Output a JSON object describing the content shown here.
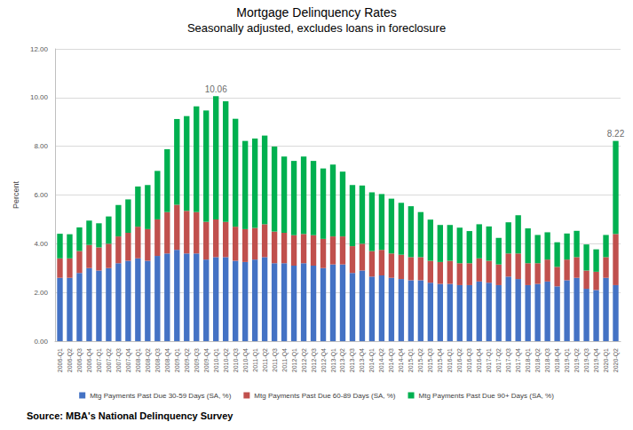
{
  "chart_data": {
    "type": "bar",
    "title": "Mortgage Delinquency Rates",
    "subtitle": "Seasonally adjusted, excludes loans in foreclosure",
    "y_label": "Percent",
    "source": "Source: MBA's National Delinquency Survey",
    "stacked": true,
    "grid": true,
    "legend": "bottom",
    "categories": [
      "2006-Q1",
      "2006-Q2",
      "2006-Q3",
      "2006-Q4",
      "2007-Q1",
      "2007-Q2",
      "2007-Q3",
      "2007-Q4",
      "2008-Q1",
      "2008-Q2",
      "2008-Q3",
      "2008-Q4",
      "2009-Q1",
      "2009-Q2",
      "2009-Q3",
      "2009-Q4",
      "2010-Q1",
      "2010-Q2",
      "2010-Q3",
      "2010-Q4",
      "2011-Q1",
      "2011-Q2",
      "2011-Q3",
      "2011-Q4",
      "2012-Q1",
      "2012-Q2",
      "2012-Q3",
      "2012-Q4",
      "2013-Q1",
      "2013-Q2",
      "2013-Q3",
      "2013-Q4",
      "2014-Q1",
      "2014-Q2",
      "2014-Q3",
      "2014-Q4",
      "2015-Q1",
      "2015-Q2",
      "2015-Q3",
      "2015-Q4",
      "2016-Q1",
      "2016-Q2",
      "2016-Q3",
      "2016-Q4",
      "2017-Q1",
      "2017-Q2",
      "2017-Q3",
      "2017-Q4",
      "2018-Q1",
      "2018-Q2",
      "2018-Q3",
      "2018-Q4",
      "2019-Q1",
      "2019-Q2",
      "2019-Q3",
      "2019-Q4",
      "2020-Q1",
      "2020-Q2"
    ],
    "series": [
      {
        "name": "Mtg Payments Past Due 30-59 Days (SA, %)",
        "color": "#4472c4",
        "values": [
          2.6,
          2.6,
          2.8,
          3.0,
          2.9,
          3.0,
          3.2,
          3.3,
          3.4,
          3.3,
          3.5,
          3.6,
          3.75,
          3.6,
          3.6,
          3.35,
          3.45,
          3.45,
          3.3,
          3.25,
          3.35,
          3.45,
          3.2,
          3.2,
          3.1,
          3.2,
          3.1,
          3.0,
          3.15,
          3.15,
          2.8,
          2.9,
          2.65,
          2.7,
          2.6,
          2.55,
          2.5,
          2.5,
          2.4,
          2.35,
          2.35,
          2.3,
          2.3,
          2.45,
          2.4,
          2.3,
          2.65,
          2.55,
          2.3,
          2.35,
          2.45,
          2.25,
          2.5,
          2.6,
          2.15,
          2.1,
          2.6,
          2.3
        ]
      },
      {
        "name": "Mtg Payments Past Due 60-89 Days (SA, %)",
        "color": "#c0504d",
        "values": [
          0.8,
          0.8,
          0.9,
          0.95,
          0.95,
          1.0,
          1.1,
          1.15,
          1.3,
          1.3,
          1.5,
          1.7,
          1.85,
          1.75,
          1.7,
          1.55,
          1.55,
          1.45,
          1.4,
          1.35,
          1.3,
          1.35,
          1.3,
          1.25,
          1.25,
          1.2,
          1.25,
          1.2,
          1.15,
          1.15,
          1.1,
          1.1,
          1.05,
          1.05,
          1.0,
          1.0,
          0.95,
          0.95,
          0.9,
          0.9,
          0.95,
          0.9,
          0.9,
          0.95,
          0.9,
          0.85,
          0.95,
          1.05,
          0.9,
          0.85,
          0.9,
          0.8,
          0.85,
          0.85,
          0.75,
          0.75,
          0.85,
          2.1
        ]
      },
      {
        "name": "Mtg Payments Past Due 90+ Days (SA, %)",
        "color": "#00b050",
        "values": [
          1.01,
          0.99,
          0.97,
          1.0,
          0.99,
          1.12,
          1.29,
          1.37,
          1.65,
          1.81,
          1.99,
          2.58,
          3.52,
          3.89,
          4.34,
          4.57,
          5.06,
          4.95,
          4.43,
          3.62,
          3.67,
          3.64,
          3.49,
          3.13,
          3.05,
          3.18,
          3.05,
          2.89,
          2.95,
          2.66,
          2.51,
          2.39,
          2.41,
          2.29,
          2.25,
          2.13,
          2.09,
          1.85,
          1.69,
          1.52,
          1.47,
          1.46,
          1.32,
          1.4,
          1.41,
          1.09,
          1.28,
          1.57,
          1.43,
          1.16,
          1.12,
          1.01,
          1.07,
          1.08,
          1.07,
          0.92,
          0.91,
          3.82
        ]
      }
    ],
    "annotations": [
      {
        "category": "2010-Q1",
        "value": 10.06
      },
      {
        "category": "2020-Q2",
        "value": 8.22
      }
    ],
    "ylim": [
      0,
      12
    ],
    "yticks": [
      {
        "value": 0,
        "label": "0.00"
      },
      {
        "value": 2,
        "label": "2.00"
      },
      {
        "value": 4,
        "label": "4.00"
      },
      {
        "value": 6,
        "label": "6.00"
      },
      {
        "value": 8,
        "label": "8.00"
      },
      {
        "value": 10,
        "label": "10.00"
      },
      {
        "value": 12,
        "label": "12.00"
      }
    ]
  }
}
